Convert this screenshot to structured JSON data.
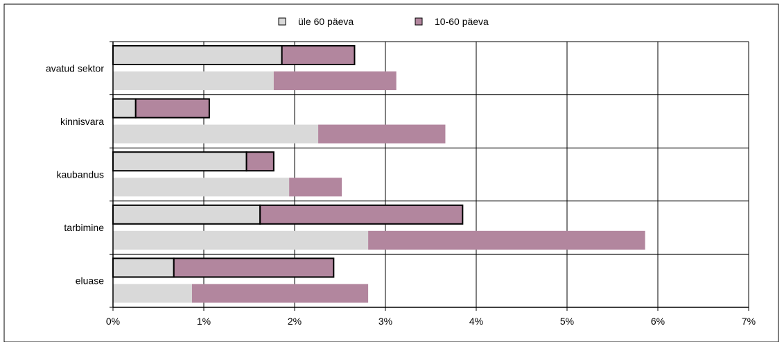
{
  "chart_data": {
    "type": "bar",
    "orientation": "horizontal",
    "stacked": true,
    "categories": [
      "avatud sektor",
      "kinnisvara",
      "kaubandus",
      "tarbimine",
      "eluase"
    ],
    "bars_per_category": 2,
    "note_bars": "Within each category the upper bar (black outline) and lower bar are two separate observations.",
    "series": [
      {
        "name": "üle 60 päeva",
        "color": "#d9d9d9",
        "values_upper": [
          1.86,
          0.25,
          1.47,
          1.62,
          0.67
        ],
        "values_lower": [
          1.77,
          2.26,
          1.94,
          2.81,
          0.87
        ]
      },
      {
        "name": "10-60 päeva",
        "color": "#b2869e",
        "values_upper": [
          0.8,
          0.81,
          0.3,
          2.23,
          1.76
        ],
        "values_lower": [
          1.35,
          1.4,
          0.58,
          3.05,
          1.94
        ]
      }
    ],
    "x_ticks": [
      "0%",
      "1%",
      "2%",
      "3%",
      "4%",
      "5%",
      "6%",
      "7%"
    ],
    "xlim": [
      0,
      7
    ],
    "x_unit": "%",
    "grid": true,
    "legend_position": "top"
  }
}
